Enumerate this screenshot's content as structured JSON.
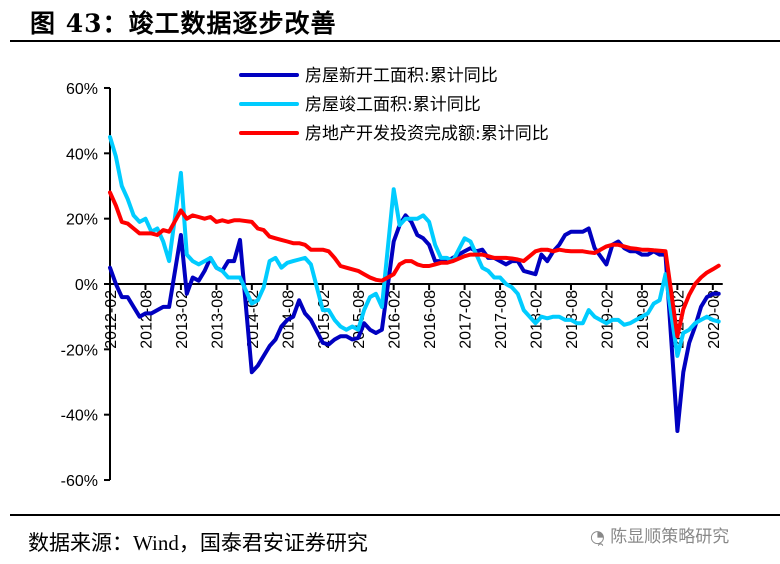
{
  "title": "图 43：竣工数据逐步改善",
  "source": "数据来源：Wind，国泰君安证券研究",
  "watermark": "陈显顺策略研究",
  "chart_data": {
    "type": "line",
    "date_start": "2012-02",
    "date_end": "2020-09",
    "note_months": "Jan-Feb combined; points Feb-Dec each year",
    "ylim": [
      -60,
      60
    ],
    "yticks": [
      "60%",
      "40%",
      "20%",
      "0%",
      "-20%",
      "-40%",
      "-60%"
    ],
    "ytick_values": [
      60,
      40,
      20,
      0,
      -20,
      -40,
      -60
    ],
    "xticks": [
      "2012-02",
      "2012-08",
      "2013-02",
      "2013-08",
      "2014-02",
      "2014-08",
      "2015-02",
      "2015-08",
      "2016-02",
      "2016-08",
      "2017-02",
      "2017-08",
      "2018-02",
      "2018-08",
      "2019-02",
      "2019-08",
      "2020-02",
      "2020-08"
    ],
    "legend_position": "top-right",
    "series": [
      {
        "name": "房屋新开工面积:累计同比",
        "color": "#0000C0",
        "values": [
          5,
          0,
          -4,
          -4,
          -7,
          -10,
          -9,
          -9,
          -8,
          -7,
          -7,
          15,
          -3,
          2,
          1,
          4,
          8,
          5,
          4,
          7,
          7,
          13.5,
          -27,
          -25,
          -22,
          -19,
          -17,
          -13,
          -11,
          -10,
          -5,
          -9,
          -11,
          -18,
          -18.5,
          -17,
          -16,
          -16,
          -17,
          -16.5,
          -12,
          -14,
          -15,
          -14,
          13,
          18,
          21,
          19,
          15,
          14,
          12,
          7,
          7,
          7,
          8,
          10,
          11,
          10,
          10.5,
          8,
          8,
          7,
          6,
          7,
          7,
          4,
          3,
          9,
          7,
          10,
          12,
          15,
          16,
          16,
          16,
          17,
          11,
          6,
          12,
          13,
          11,
          10,
          10,
          9,
          9,
          10,
          9,
          9,
          -45,
          -27,
          -18,
          -13,
          -7,
          -4,
          -3,
          -3
        ]
      },
      {
        "name": "房屋竣工面积:累计同比",
        "color": "#00CCFF",
        "values": [
          45,
          39,
          30,
          26,
          21,
          19,
          20,
          16,
          17,
          13,
          7,
          34,
          9,
          7,
          6,
          7,
          8,
          5,
          4,
          2,
          2,
          2,
          -6,
          -5,
          -1,
          7,
          8,
          5,
          6.5,
          7,
          7.5,
          8,
          6,
          -8,
          -8,
          -11,
          -13,
          -14,
          -13,
          -14,
          -8,
          -4,
          -3,
          -7,
          29,
          18,
          20,
          20,
          20,
          21,
          19,
          12,
          8,
          8,
          7,
          14,
          13,
          9,
          5,
          4,
          2,
          2,
          0,
          -1,
          -3,
          -8,
          -12,
          -10,
          -10.5,
          -10,
          -10,
          -11,
          -11,
          -12,
          -12,
          -8,
          -10,
          -12,
          -11,
          -11,
          -12.5,
          -12,
          -11,
          -10,
          -9,
          -6,
          -5,
          3,
          -22,
          -15,
          -14,
          -12,
          -11,
          -10,
          -11,
          -11.5
        ]
      },
      {
        "name": "房地产开发投资完成额:累计同比",
        "color": "#FF0000",
        "values": [
          28,
          24,
          19,
          18.5,
          17,
          15.5,
          15.5,
          15.5,
          15,
          16.5,
          16,
          22.5,
          20,
          21,
          20.5,
          20,
          20.5,
          19,
          19.5,
          19,
          19.5,
          19.5,
          19,
          17,
          16.5,
          14.5,
          14,
          13.5,
          13,
          12.5,
          12.5,
          12,
          10.5,
          10.5,
          10,
          8,
          5.5,
          5,
          4.5,
          4,
          3,
          2,
          1.3,
          1,
          3,
          6,
          7,
          7,
          6,
          5.5,
          5.5,
          6,
          6.5,
          6.5,
          7,
          8.5,
          9,
          9,
          9,
          8.5,
          8,
          8,
          8,
          7.8,
          7.5,
          7,
          10,
          10.5,
          10.5,
          10,
          10.5,
          10.2,
          10,
          10,
          10,
          9.7,
          9.5,
          11.5,
          12,
          12,
          11.5,
          11,
          10.8,
          10.5,
          10.5,
          10.3,
          10.2,
          10,
          -16,
          -7.7,
          -3.3,
          0,
          2,
          3.5,
          4.5,
          5.6
        ]
      }
    ]
  }
}
